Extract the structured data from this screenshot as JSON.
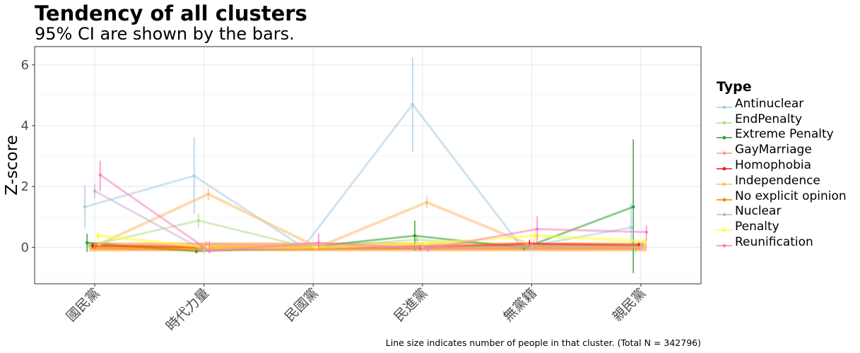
{
  "chart_data": {
    "type": "line",
    "title": "Tendency of all clusters",
    "subtitle": "95% CI are shown by the bars.",
    "xlabel": "",
    "ylabel": "Z-score",
    "caption": "Line size indicates number of people in that cluster. (Total N = 342796)",
    "categories": [
      "國民黨",
      "時代力量",
      "民國黨",
      "民進黨",
      "無黨籍",
      "親民黨"
    ],
    "ylim": [
      -1.2,
      6.6
    ],
    "yticks": [
      0,
      2,
      4,
      6
    ],
    "grid": true,
    "legend_title": "Type",
    "legend_position": "right",
    "series": [
      {
        "name": "Antinuclear",
        "color": "#a6cee3",
        "lw": 3,
        "offset": -0.09,
        "values": [
          1.33,
          2.35,
          0.0,
          4.7,
          0.0,
          0.65
        ],
        "lo": [
          0.62,
          1.1,
          -0.05,
          3.15,
          -0.1,
          -0.1
        ],
        "hi": [
          2.05,
          3.62,
          0.05,
          6.25,
          0.1,
          1.45
        ]
      },
      {
        "name": "EndPenalty",
        "color": "#b2df8a",
        "lw": 3,
        "offset": -0.05,
        "values": [
          0.05,
          0.88,
          0.0,
          0.25,
          0.0,
          0.0
        ],
        "lo": [
          -0.05,
          0.65,
          -0.05,
          0.1,
          -0.1,
          -0.2
        ],
        "hi": [
          0.15,
          1.12,
          0.05,
          0.4,
          0.1,
          0.2
        ]
      },
      {
        "name": "Extreme Penalty",
        "color": "#33a02c",
        "lw": 3,
        "offset": -0.07,
        "values": [
          0.15,
          -0.13,
          0.0,
          0.38,
          -0.02,
          1.33
        ],
        "lo": [
          -0.15,
          -0.2,
          -0.05,
          -0.1,
          -0.1,
          -0.85
        ],
        "hi": [
          0.45,
          -0.05,
          0.05,
          0.88,
          0.05,
          3.55
        ]
      },
      {
        "name": "GayMarriage",
        "color": "#fb9a99",
        "lw": 3,
        "offset": 0.02,
        "values": [
          0.05,
          0.1,
          0.05,
          0.05,
          0.1,
          0.08
        ],
        "lo": [
          0.0,
          0.0,
          0.0,
          0.0,
          0.0,
          0.0
        ],
        "hi": [
          0.12,
          0.2,
          0.12,
          0.12,
          0.22,
          0.18
        ]
      },
      {
        "name": "Homophobia",
        "color": "#e31a1c",
        "lw": 3,
        "offset": -0.02,
        "values": [
          0.05,
          0.0,
          0.0,
          -0.02,
          0.12,
          0.07
        ],
        "lo": [
          -0.05,
          -0.05,
          -0.05,
          -0.1,
          0.0,
          -0.02
        ],
        "hi": [
          0.15,
          0.05,
          0.05,
          0.06,
          0.25,
          0.16
        ]
      },
      {
        "name": "Independence",
        "color": "#fdbf6f",
        "lw": 4,
        "offset": 0.04,
        "values": [
          0.1,
          1.75,
          0.0,
          1.48,
          0.0,
          0.0
        ],
        "lo": [
          0.0,
          1.55,
          -0.05,
          1.3,
          -0.1,
          -0.1
        ],
        "hi": [
          0.2,
          1.95,
          0.05,
          1.66,
          0.1,
          0.1
        ]
      },
      {
        "name": "No explicit opinion",
        "color": "#ff7f00",
        "lw": 6,
        "offset": 0.0,
        "values": [
          0.0,
          -0.05,
          -0.02,
          0.0,
          0.0,
          0.0
        ],
        "lo": [
          -0.05,
          -0.1,
          -0.06,
          -0.05,
          -0.05,
          -0.05
        ],
        "hi": [
          0.05,
          0.0,
          0.02,
          0.05,
          0.05,
          0.05
        ]
      },
      {
        "name": "Nuclear",
        "color": "#cab2d6",
        "lw": 3,
        "offset": 0.0,
        "values": [
          1.85,
          -0.1,
          0.0,
          0.0,
          0.0,
          0.0
        ],
        "lo": [
          1.6,
          -0.2,
          -0.05,
          -0.05,
          -0.1,
          -0.1
        ],
        "hi": [
          2.1,
          0.0,
          0.05,
          0.05,
          0.1,
          0.1
        ]
      },
      {
        "name": "Penalty",
        "color": "#ffff33",
        "lw": 4,
        "offset": 0.03,
        "values": [
          0.38,
          0.0,
          0.0,
          0.12,
          0.38,
          0.2
        ],
        "lo": [
          0.25,
          -0.05,
          -0.05,
          0.05,
          0.2,
          0.05
        ],
        "hi": [
          0.5,
          0.05,
          0.05,
          0.2,
          0.55,
          0.35
        ]
      },
      {
        "name": "Reunification",
        "color": "#f781bf",
        "lw": 3,
        "offset": 0.05,
        "values": [
          2.38,
          -0.12,
          0.15,
          -0.05,
          0.6,
          0.5
        ],
        "lo": [
          1.85,
          -0.2,
          -0.1,
          -0.15,
          0.15,
          0.2
        ],
        "hi": [
          2.85,
          0.2,
          0.45,
          0.05,
          1.02,
          0.72
        ]
      }
    ],
    "band": {
      "ymin": -0.13,
      "ymax": 0.16,
      "color": "#ffb060"
    }
  }
}
